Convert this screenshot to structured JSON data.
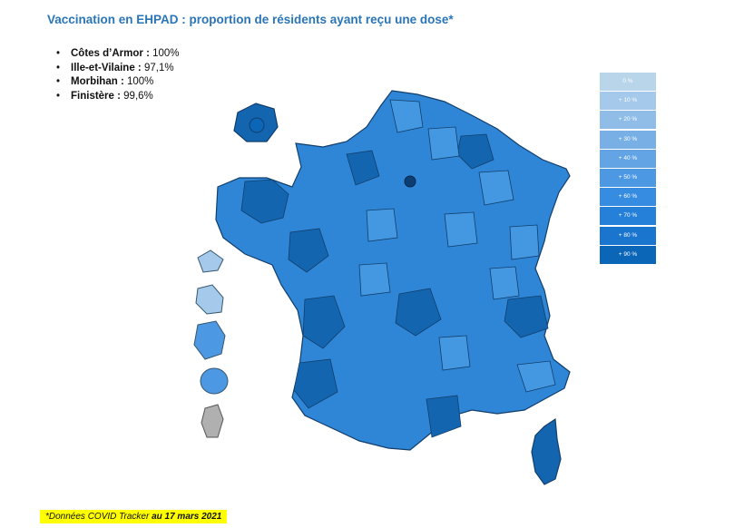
{
  "title": "Vaccination en EHPAD : proportion de résidents ayant reçu une dose*",
  "stats": [
    {
      "dep": "Côtes d’Armor :",
      "value": " 100%"
    },
    {
      "dep": "Ille-et-Vilaine :",
      "value": " 97,1%"
    },
    {
      "dep": "Morbihan :",
      "value": " 100%"
    },
    {
      "dep": "Finistère :",
      "value": " 99,6%"
    }
  ],
  "legend": [
    {
      "label": "0 %",
      "color": "#b8d5ea"
    },
    {
      "label": "+ 10 %",
      "color": "#a4c9ea"
    },
    {
      "label": "+ 20 %",
      "color": "#8fbde8"
    },
    {
      "label": "+ 30 %",
      "color": "#78b0e6"
    },
    {
      "label": "+ 40 %",
      "color": "#62a4e4"
    },
    {
      "label": "+ 50 %",
      "color": "#4c98e2"
    },
    {
      "label": "+ 60 %",
      "color": "#368ce0"
    },
    {
      "label": "+ 70 %",
      "color": "#2480d8"
    },
    {
      "label": "+ 80 %",
      "color": "#1a75cf"
    },
    {
      "label": "+ 90 %",
      "color": "#0b66b8"
    }
  ],
  "source": {
    "prefix": "*Données COVID Tracker ",
    "date": "au 17 mars 2021"
  }
}
